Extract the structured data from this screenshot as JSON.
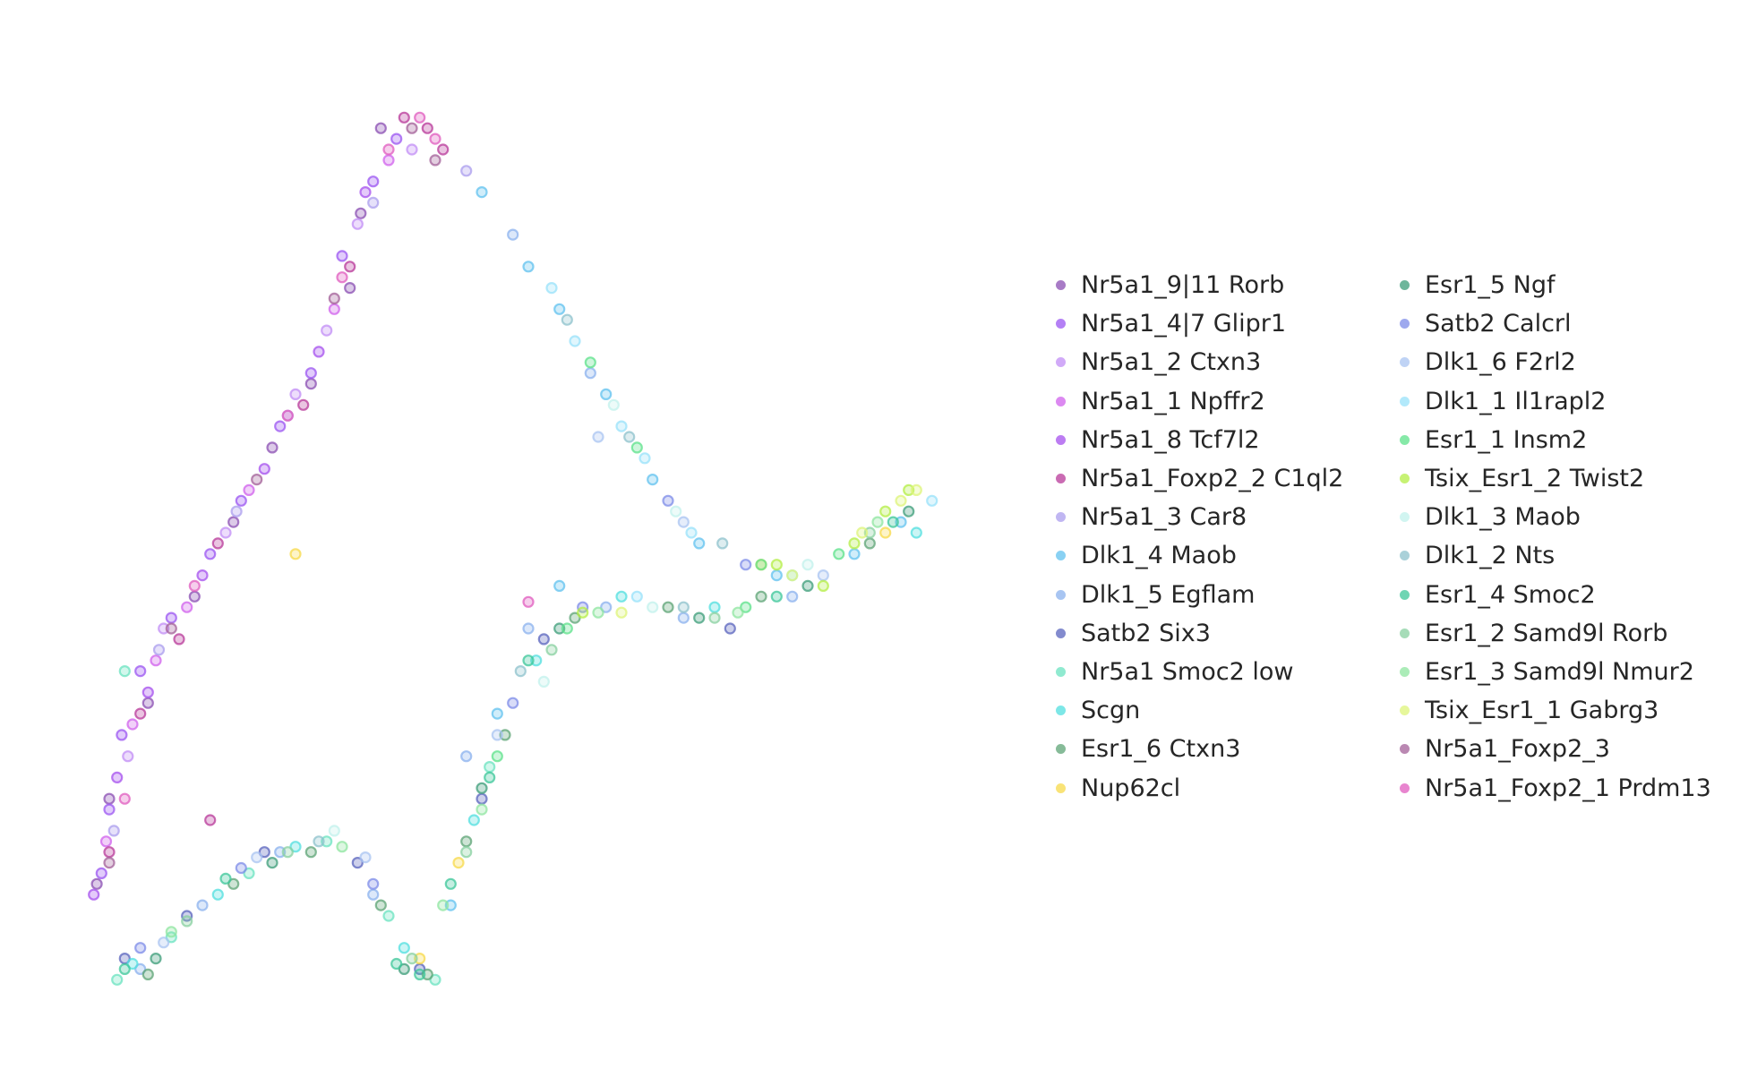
{
  "chart_data": {
    "type": "scatter",
    "title": "",
    "xlabel": "",
    "ylabel": "",
    "axes_visible": false,
    "grid": false,
    "legend_placement": "right",
    "marker_alpha": 0.55,
    "series": [
      {
        "name": "Nr5a1_9|11 Rorb",
        "color": "#8b4fb3",
        "points": [
          [
            2.05,
            8.3
          ],
          [
            1.92,
            7.5
          ],
          [
            1.85,
            6.8
          ],
          [
            1.6,
            5.9
          ],
          [
            1.35,
            5.3
          ],
          [
            1.1,
            4.6
          ],
          [
            0.85,
            3.9
          ],
          [
            0.55,
            2.9
          ],
          [
            0.3,
            2.0
          ],
          [
            0.22,
            1.2
          ]
        ]
      },
      {
        "name": "Nr5a1_4|7 Glipr1",
        "color": "#9b55f2",
        "points": [
          [
            0.25,
            1.3
          ],
          [
            0.3,
            1.9
          ],
          [
            0.38,
            2.6
          ],
          [
            0.5,
            3.2
          ],
          [
            0.7,
            3.7
          ],
          [
            0.95,
            4.3
          ],
          [
            1.15,
            4.8
          ],
          [
            1.4,
            5.5
          ],
          [
            1.6,
            6.0
          ],
          [
            1.8,
            7.1
          ],
          [
            2.0,
            7.8
          ],
          [
            2.15,
            8.2
          ]
        ]
      },
      {
        "name": "Nr5a1_2 Ctxn3",
        "color": "#c28ef5",
        "points": [
          [
            0.42,
            2.4
          ],
          [
            0.65,
            3.6
          ],
          [
            1.05,
            4.5
          ],
          [
            1.5,
            5.8
          ],
          [
            1.7,
            6.4
          ],
          [
            1.9,
            7.4
          ],
          [
            2.25,
            8.1
          ]
        ]
      },
      {
        "name": "Nr5a1_1 Npffr2",
        "color": "#d062ec",
        "points": [
          [
            0.28,
            1.6
          ],
          [
            0.45,
            2.7
          ],
          [
            0.6,
            3.3
          ],
          [
            0.8,
            3.8
          ],
          [
            1.2,
            4.9
          ],
          [
            1.75,
            6.6
          ],
          [
            2.1,
            8.0
          ]
        ]
      },
      {
        "name": "Nr5a1_8 Tcf7l2",
        "color": "#a650ee",
        "points": [
          [
            0.2,
            1.1
          ],
          [
            0.35,
            2.2
          ],
          [
            0.55,
            3.0
          ],
          [
            0.9,
            4.1
          ],
          [
            1.3,
            5.1
          ],
          [
            1.65,
            6.2
          ],
          [
            1.95,
            7.7
          ]
        ]
      },
      {
        "name": "Nr5a1_Foxp2_2 C1ql2",
        "color": "#b83a9a",
        "points": [
          [
            0.3,
            1.5
          ],
          [
            0.5,
            2.8
          ],
          [
            0.75,
            3.5
          ],
          [
            1.0,
            4.4
          ],
          [
            1.55,
            5.7
          ],
          [
            1.85,
            7.0
          ],
          [
            2.2,
            8.4
          ],
          [
            2.35,
            8.3
          ],
          [
            2.45,
            8.1
          ],
          [
            0.95,
            1.8
          ]
        ]
      },
      {
        "name": "Nr5a1_3 Car8",
        "color": "#ab9ded",
        "points": [
          [
            0.33,
            1.7
          ],
          [
            0.62,
            3.4
          ],
          [
            1.12,
            4.7
          ],
          [
            1.45,
            5.6
          ],
          [
            2.0,
            7.6
          ],
          [
            2.6,
            7.9
          ]
        ]
      },
      {
        "name": "Dlk1_4 Maob",
        "color": "#62c2ef",
        "points": [
          [
            2.7,
            7.7
          ],
          [
            3.0,
            7.0
          ],
          [
            3.2,
            6.6
          ],
          [
            3.5,
            5.8
          ],
          [
            3.8,
            5.0
          ],
          [
            4.1,
            4.4
          ],
          [
            4.6,
            4.1
          ],
          [
            5.1,
            4.3
          ],
          [
            5.4,
            4.6
          ],
          [
            3.2,
            4.0
          ],
          [
            2.8,
            2.8
          ],
          [
            2.5,
            1.0
          ]
        ]
      },
      {
        "name": "Dlk1_5 Egflam",
        "color": "#8bb2ed",
        "points": [
          [
            0.5,
            0.4
          ],
          [
            0.9,
            1.0
          ],
          [
            1.4,
            1.5
          ],
          [
            2.0,
            1.1
          ],
          [
            2.6,
            2.4
          ],
          [
            3.0,
            3.6
          ],
          [
            3.5,
            3.8
          ],
          [
            4.0,
            3.7
          ],
          [
            4.7,
            3.9
          ],
          [
            2.9,
            7.3
          ],
          [
            3.4,
            6.0
          ]
        ]
      },
      {
        "name": "Satb2 Six3",
        "color": "#5a64be",
        "points": [
          [
            0.4,
            0.5
          ],
          [
            0.8,
            0.9
          ],
          [
            1.3,
            1.5
          ],
          [
            1.9,
            1.4
          ],
          [
            2.3,
            0.4
          ],
          [
            2.7,
            2.0
          ],
          [
            3.1,
            3.5
          ],
          [
            4.3,
            3.6
          ]
        ]
      },
      {
        "name": "Nr5a1 Smoc2 low",
        "color": "#6be3c0",
        "points": [
          [
            0.35,
            0.3
          ],
          [
            0.7,
            0.7
          ],
          [
            1.2,
            1.3
          ],
          [
            1.7,
            1.6
          ],
          [
            2.1,
            0.9
          ],
          [
            2.4,
            0.3
          ],
          [
            2.75,
            2.3
          ],
          [
            0.4,
            3.2
          ]
        ]
      },
      {
        "name": "Scgn",
        "color": "#52dfdf",
        "points": [
          [
            0.45,
            0.45
          ],
          [
            1.0,
            1.1
          ],
          [
            1.5,
            1.55
          ],
          [
            2.2,
            0.6
          ],
          [
            2.65,
            1.8
          ],
          [
            3.05,
            3.3
          ],
          [
            3.6,
            3.9
          ],
          [
            4.2,
            3.8
          ],
          [
            5.5,
            4.5
          ]
        ]
      },
      {
        "name": "Esr1_6 Ctxn3",
        "color": "#5da475",
        "points": [
          [
            0.55,
            0.35
          ],
          [
            1.1,
            1.2
          ],
          [
            1.6,
            1.5
          ],
          [
            2.05,
            1.0
          ],
          [
            2.35,
            0.35
          ],
          [
            2.6,
            1.6
          ],
          [
            2.85,
            2.6
          ],
          [
            3.3,
            3.7
          ],
          [
            3.9,
            3.8
          ],
          [
            4.5,
            3.9
          ],
          [
            5.2,
            4.4
          ]
        ]
      },
      {
        "name": "Nup62cl",
        "color": "#f7d94a",
        "points": [
          [
            2.3,
            0.5
          ],
          [
            2.55,
            1.4
          ],
          [
            4.5,
            4.2
          ],
          [
            5.3,
            4.5
          ],
          [
            1.5,
            4.3
          ]
        ]
      },
      {
        "name": "Esr1_5 Ngf",
        "color": "#3e9d7a",
        "points": [
          [
            0.6,
            0.5
          ],
          [
            1.35,
            1.4
          ],
          [
            2.2,
            0.4
          ],
          [
            2.7,
            2.1
          ],
          [
            3.2,
            3.6
          ],
          [
            4.1,
            3.7
          ],
          [
            4.8,
            4.0
          ],
          [
            5.45,
            4.7
          ]
        ]
      },
      {
        "name": "Satb2 Calcrl",
        "color": "#7e8ce8",
        "points": [
          [
            0.5,
            0.6
          ],
          [
            1.15,
            1.35
          ],
          [
            2.0,
            1.2
          ],
          [
            2.9,
            2.9
          ],
          [
            3.35,
            3.8
          ],
          [
            3.9,
            4.8
          ],
          [
            4.4,
            4.2
          ]
        ]
      },
      {
        "name": "Dlk1_6 F2rl2",
        "color": "#aac4f2",
        "points": [
          [
            0.65,
            0.65
          ],
          [
            1.25,
            1.45
          ],
          [
            1.95,
            1.45
          ],
          [
            2.8,
            2.6
          ],
          [
            3.45,
            5.4
          ],
          [
            4.0,
            4.6
          ],
          [
            4.9,
            4.1
          ]
        ]
      },
      {
        "name": "Dlk1_1 Il1rapl2",
        "color": "#98e2fa",
        "points": [
          [
            3.15,
            6.8
          ],
          [
            3.3,
            6.3
          ],
          [
            3.6,
            5.5
          ],
          [
            3.75,
            5.2
          ],
          [
            4.05,
            4.5
          ],
          [
            4.7,
            4.1
          ],
          [
            5.6,
            4.8
          ],
          [
            3.7,
            3.9
          ]
        ]
      },
      {
        "name": "Esr1_1 Insm2",
        "color": "#5de28b",
        "points": [
          [
            3.4,
            6.1
          ],
          [
            3.7,
            5.3
          ],
          [
            4.5,
            4.2
          ],
          [
            5.0,
            4.3
          ],
          [
            2.8,
            2.4
          ],
          [
            3.25,
            3.6
          ],
          [
            4.4,
            3.8
          ]
        ]
      },
      {
        "name": "Tsix_Esr1_2 Twist2",
        "color": "#b4ee46",
        "points": [
          [
            4.6,
            4.2
          ],
          [
            5.1,
            4.4
          ],
          [
            5.3,
            4.7
          ],
          [
            5.45,
            4.9
          ],
          [
            3.35,
            3.75
          ],
          [
            4.9,
            4.0
          ]
        ]
      },
      {
        "name": "Dlk1_3 Maob",
        "color": "#c2f2ec",
        "points": [
          [
            3.55,
            5.7
          ],
          [
            3.95,
            4.7
          ],
          [
            4.8,
            4.2
          ],
          [
            3.1,
            3.1
          ],
          [
            3.8,
            3.8
          ],
          [
            1.75,
            1.7
          ]
        ]
      },
      {
        "name": "Dlk1_2 Nts",
        "color": "#8ec2cc",
        "points": [
          [
            3.25,
            6.5
          ],
          [
            3.65,
            5.4
          ],
          [
            4.25,
            4.4
          ],
          [
            4.0,
            3.8
          ],
          [
            2.95,
            3.2
          ],
          [
            1.65,
            1.6
          ]
        ]
      },
      {
        "name": "Esr1_4 Smoc2",
        "color": "#3dc79a",
        "points": [
          [
            0.4,
            0.4
          ],
          [
            1.05,
            1.25
          ],
          [
            2.15,
            0.45
          ],
          [
            2.3,
            0.35
          ],
          [
            2.5,
            1.2
          ],
          [
            2.75,
            2.2
          ],
          [
            3.0,
            3.3
          ],
          [
            4.6,
            3.9
          ],
          [
            5.35,
            4.6
          ]
        ]
      },
      {
        "name": "Esr1_2 Samd9l Rorb",
        "color": "#88d0a0",
        "points": [
          [
            0.8,
            0.85
          ],
          [
            1.45,
            1.5
          ],
          [
            2.25,
            0.5
          ],
          [
            2.6,
            1.5
          ],
          [
            3.15,
            3.4
          ],
          [
            4.2,
            3.7
          ],
          [
            5.2,
            4.5
          ]
        ]
      },
      {
        "name": "Esr1_3 Samd9l Nmur2",
        "color": "#8fe6a0",
        "points": [
          [
            0.7,
            0.75
          ],
          [
            1.8,
            1.55
          ],
          [
            2.45,
            1.0
          ],
          [
            2.7,
            1.9
          ],
          [
            3.45,
            3.75
          ],
          [
            4.35,
            3.75
          ],
          [
            5.25,
            4.6
          ]
        ]
      },
      {
        "name": "Tsix_Esr1_1 Gabrg3",
        "color": "#def47a",
        "points": [
          [
            5.4,
            4.8
          ],
          [
            5.5,
            4.9
          ],
          [
            4.7,
            4.1
          ],
          [
            3.6,
            3.75
          ],
          [
            5.15,
            4.5
          ]
        ]
      },
      {
        "name": "Nr5a1_Foxp2_3",
        "color": "#a36098",
        "points": [
          [
            0.3,
            1.4
          ],
          [
            0.7,
            3.6
          ],
          [
            1.25,
            5.0
          ],
          [
            1.75,
            6.7
          ],
          [
            2.25,
            8.3
          ],
          [
            2.4,
            8.0
          ]
        ]
      },
      {
        "name": "Nr5a1_Foxp2_1 Prdm13",
        "color": "#e05cbf",
        "points": [
          [
            0.4,
            2.0
          ],
          [
            0.85,
            4.0
          ],
          [
            1.45,
            5.6
          ],
          [
            1.8,
            6.9
          ],
          [
            2.1,
            8.1
          ],
          [
            2.3,
            8.4
          ],
          [
            2.4,
            8.2
          ],
          [
            3.0,
            3.85
          ]
        ]
      }
    ],
    "legend_columns": [
      [
        {
          "label": "Nr5a1_9|11 Rorb",
          "color": "#8b4fb3"
        },
        {
          "label": "Nr5a1_4|7 Glipr1",
          "color": "#9b55f2"
        },
        {
          "label": "Nr5a1_2 Ctxn3",
          "color": "#c28ef5"
        },
        {
          "label": "Nr5a1_1 Npffr2",
          "color": "#d062ec"
        },
        {
          "label": "Nr5a1_8 Tcf7l2",
          "color": "#a650ee"
        },
        {
          "label": "Nr5a1_Foxp2_2 C1ql2",
          "color": "#b83a9a"
        },
        {
          "label": "Nr5a1_3 Car8",
          "color": "#ab9ded"
        },
        {
          "label": "Dlk1_4 Maob",
          "color": "#62c2ef"
        },
        {
          "label": "Dlk1_5 Egflam",
          "color": "#8bb2ed"
        },
        {
          "label": "Satb2 Six3",
          "color": "#5a64be"
        },
        {
          "label": "Nr5a1 Smoc2 low",
          "color": "#6be3c0"
        },
        {
          "label": "Scgn",
          "color": "#52dfdf"
        },
        {
          "label": "Esr1_6 Ctxn3",
          "color": "#5da475"
        },
        {
          "label": "Nup62cl",
          "color": "#f7d94a"
        }
      ],
      [
        {
          "label": "Esr1_5 Ngf",
          "color": "#3e9d7a"
        },
        {
          "label": "Satb2 Calcrl",
          "color": "#7e8ce8"
        },
        {
          "label": "Dlk1_6 F2rl2",
          "color": "#aac4f2"
        },
        {
          "label": "Dlk1_1 Il1rapl2",
          "color": "#98e2fa"
        },
        {
          "label": "Esr1_1 Insm2",
          "color": "#5de28b"
        },
        {
          "label": "Tsix_Esr1_2 Twist2",
          "color": "#b4ee46"
        },
        {
          "label": "Dlk1_3 Maob",
          "color": "#c2f2ec"
        },
        {
          "label": "Dlk1_2 Nts",
          "color": "#8ec2cc"
        },
        {
          "label": "Esr1_4 Smoc2",
          "color": "#3dc79a"
        },
        {
          "label": "Esr1_2 Samd9l Rorb",
          "color": "#88d0a0"
        },
        {
          "label": "Esr1_3 Samd9l Nmur2",
          "color": "#8fe6a0"
        },
        {
          "label": "Tsix_Esr1_1 Gabrg3",
          "color": "#def47a"
        },
        {
          "label": "Nr5a1_Foxp2_3",
          "color": "#a36098"
        },
        {
          "label": "Nr5a1_Foxp2_1 Prdm13",
          "color": "#e05cbf"
        }
      ]
    ]
  }
}
